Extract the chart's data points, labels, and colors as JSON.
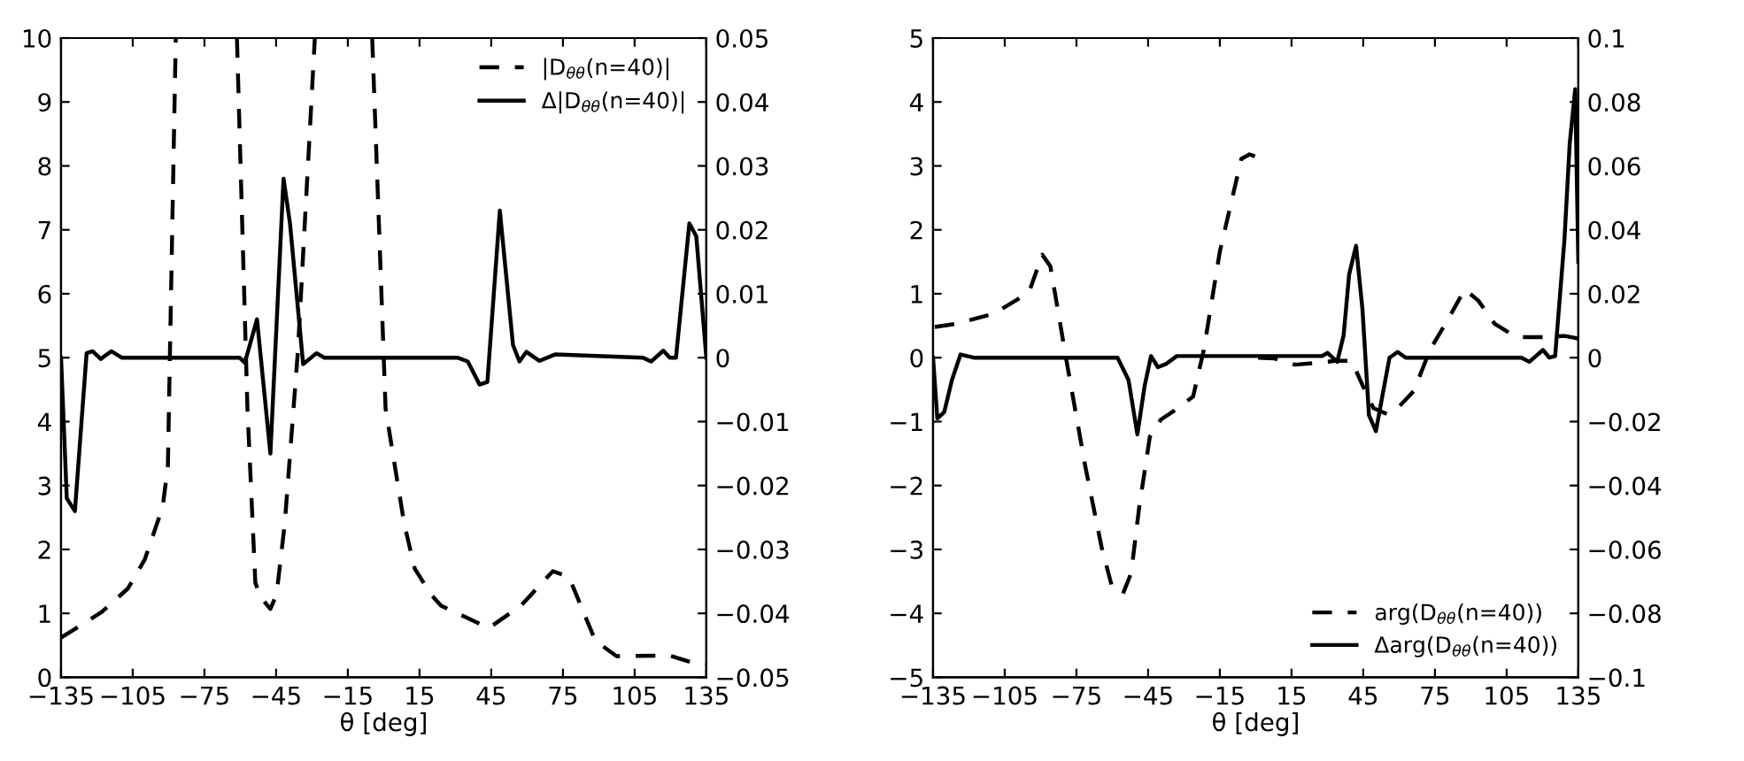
{
  "chart_data": [
    {
      "type": "line",
      "xlabel": "θ [deg]",
      "xlim": [
        -135,
        135
      ],
      "xticks": [
        {
          "value": -135,
          "label": "−135"
        },
        {
          "value": -105,
          "label": "−105"
        },
        {
          "value": -75,
          "label": "−75"
        },
        {
          "value": -45,
          "label": "−45"
        },
        {
          "value": -15,
          "label": "−15"
        },
        15,
        45,
        75,
        105,
        135
      ],
      "ylim": [
        0,
        10
      ],
      "yticks": [
        0,
        1,
        2,
        3,
        4,
        5,
        6,
        7,
        8,
        9,
        10
      ],
      "y2lim": [
        -0.05,
        0.05
      ],
      "y2ticks": [
        {
          "value": -0.05,
          "label": "−0.05"
        },
        {
          "value": -0.04,
          "label": "−0.04"
        },
        {
          "value": -0.03,
          "label": "−0.03"
        },
        {
          "value": -0.02,
          "label": "−0.02"
        },
        {
          "value": -0.01,
          "label": "−0.01"
        },
        0,
        0.01,
        0.02,
        0.03,
        0.04,
        0.05
      ],
      "legend": "top right",
      "grid": false,
      "series": [
        {
          "name": "|D$_{θθ}$(n=40)|",
          "color": "#000000",
          "line_style": "dashed",
          "x": [
            -135,
            -118,
            -107,
            -100,
            -92.5,
            -90.3,
            -87,
            -74,
            -61.4,
            -57,
            -53.7,
            -51.5,
            -47.4,
            -44.8,
            -41.4,
            -35.9,
            -28.8,
            -17,
            -4.8,
            0.8,
            8.6,
            13,
            19.7,
            24,
            44,
            57.4,
            70.8,
            77.5,
            88.6,
            97.4,
            119.7,
            130.8,
            135
          ],
          "values": [
            0.62,
            1.02,
            1.39,
            1.84,
            2.66,
            3.3,
            10,
            null,
            10,
            4.2,
            1.48,
            1.25,
            1.07,
            1.3,
            2.4,
            5.1,
            10,
            null,
            10,
            4.2,
            2.4,
            1.7,
            1.3,
            1.12,
            0.77,
            1.12,
            1.66,
            1.57,
            0.57,
            0.33,
            0.34,
            0.21,
            0.2
          ]
        },
        {
          "name": "Δ|D$_{θθ}$(n=40)|",
          "color": "#000000",
          "line_style": "solid",
          "axis": "y2",
          "x": [
            -135,
            -132.6,
            -129.2,
            -124.3,
            -121.8,
            -118.4,
            -114,
            -109.6,
            -60.3,
            -58.1,
            -53,
            -47.4,
            -41.9,
            -39.2,
            -33.7,
            -28.1,
            -24.8,
            30.8,
            35.2,
            40.1,
            43.4,
            48.6,
            54.1,
            56.8,
            59.7,
            65.2,
            71.7,
            108.5,
            111.9,
            117,
            119.7,
            122.3,
            127.9,
            130.8,
            135
          ],
          "values": [
            0,
            -0.022,
            -0.024,
            0.0007,
            0.001,
            -0.0002,
            0.001,
            0,
            0,
            -0.0008,
            0.006,
            -0.015,
            0.028,
            0.021,
            -0.001,
            0.0007,
            0,
            0,
            -0.0006,
            -0.0042,
            -0.0038,
            0.023,
            0.002,
            -0.0006,
            0.0009,
            -0.0005,
            0.0005,
            0,
            -0.0006,
            0.0011,
            0,
            0,
            0.021,
            0.019,
            0
          ]
        }
      ]
    },
    {
      "type": "line",
      "xlabel": "θ [deg]",
      "xlim": [
        -135,
        135
      ],
      "xticks": [
        {
          "value": -135,
          "label": "−135"
        },
        {
          "value": -105,
          "label": "−105"
        },
        {
          "value": -75,
          "label": "−75"
        },
        {
          "value": -45,
          "label": "−45"
        },
        {
          "value": -15,
          "label": "−15"
        },
        15,
        45,
        75,
        105,
        135
      ],
      "ylim": [
        -5,
        5
      ],
      "yticks": [
        {
          "value": -5,
          "label": "−5"
        },
        {
          "value": -4,
          "label": "−4"
        },
        {
          "value": -3,
          "label": "−3"
        },
        {
          "value": -2,
          "label": "−2"
        },
        {
          "value": -1,
          "label": "−1"
        },
        0,
        1,
        2,
        3,
        4,
        5
      ],
      "y2lim": [
        -0.1,
        0.1
      ],
      "y2ticks": [
        {
          "value": -0.1,
          "label": "−0.1"
        },
        {
          "value": -0.08,
          "label": "−0.08"
        },
        {
          "value": -0.06,
          "label": "−0.06"
        },
        {
          "value": -0.04,
          "label": "−0.04"
        },
        {
          "value": -0.02,
          "label": "−0.02"
        },
        0,
        0.02,
        0.04,
        0.06,
        0.08,
        0.1
      ],
      "legend": "bottom right",
      "grid": false,
      "series": [
        {
          "name": "arg(D$_{θθ}$(n=40))",
          "color": "#000000",
          "line_style": "dashed",
          "x": [
            -134.3,
            -125.3,
            -109.5,
            -94.9,
            -89.3,
            -85.9,
            -79.1,
            -71.3,
            -64.5,
            -60,
            -55.5,
            -52.1,
            -48.7,
            -44.3,
            -39.7,
            -34.1,
            -26.2,
            -21.7,
            -15,
            -6,
            -2.6,
            -0.3,
            0.5,
            1,
            7.6,
            16.5,
            25.5,
            33.4,
            40.2,
            44.7,
            49.3,
            54.9,
            59.4,
            66.2,
            72.9,
            80.8,
            87.5,
            93.2,
            100,
            109,
            120.2,
            129.2,
            134.8
          ],
          "values": [
            0.48,
            0.53,
            0.69,
            1.02,
            1.61,
            1.43,
            -0.06,
            -1.7,
            -2.96,
            -3.6,
            -3.69,
            -3.37,
            -2.33,
            -1.24,
            -0.97,
            -0.83,
            -0.61,
            0.12,
            1.66,
            3.11,
            3.18,
            3.15,
            null,
            0,
            -0.01,
            -0.11,
            -0.08,
            -0.05,
            -0.05,
            -0.43,
            -0.79,
            -0.88,
            -0.79,
            -0.52,
            0.12,
            0.62,
            1.07,
            0.89,
            0.53,
            0.32,
            0.32,
            0.34,
            0.3
          ]
        },
        {
          "name": "Δarg(D$_{θθ}$(n=40))",
          "color": "#000000",
          "line_style": "solid",
          "axis": "y2",
          "x": [
            -135,
            -133.2,
            -130.3,
            -127.1,
            -123.5,
            -118,
            -57.8,
            -53.2,
            -49.5,
            -46.5,
            -43.8,
            -40.9,
            -37.6,
            -33,
            27.8,
            30.1,
            34.1,
            36.8,
            39.1,
            42,
            44.7,
            47.4,
            50.3,
            53,
            56,
            59.4,
            62.8,
            111.2,
            114.5,
            120.2,
            122.9,
            125.3,
            129.2,
            131.4,
            133.7,
            135
          ],
          "values": [
            0,
            -0.019,
            -0.017,
            -0.007,
            0.001,
            0,
            0,
            -0.007,
            -0.024,
            -0.009,
            0.0005,
            -0.003,
            -0.002,
            0.0005,
            0.0005,
            0.0015,
            -0.0013,
            0.007,
            0.026,
            0.035,
            0.015,
            -0.018,
            -0.023,
            -0.012,
            0,
            0.0018,
            0,
            0,
            -0.0013,
            0.0024,
            0,
            0.0005,
            0.037,
            0.067,
            0.084,
            0.03
          ]
        }
      ]
    }
  ]
}
